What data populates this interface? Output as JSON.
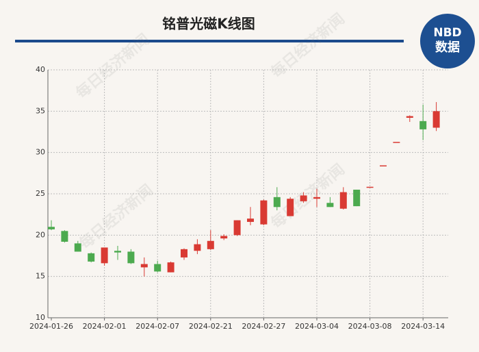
{
  "chart_data": {
    "type": "candlestick",
    "title": "铭普光磁K线图",
    "categories": [
      "2024-01-26",
      null,
      null,
      null,
      "2024-02-01",
      null,
      null,
      null,
      "2024-02-07",
      null,
      null,
      null,
      "2024-02-21",
      null,
      null,
      null,
      "2024-02-27",
      null,
      null,
      null,
      "2024-03-04",
      null,
      null,
      null,
      "2024-03-08",
      null,
      null,
      null,
      "2024-03-14",
      null
    ],
    "open": [
      21.0,
      20.5,
      19.0,
      17.8,
      16.6,
      18.1,
      18.0,
      16.1,
      16.5,
      15.5,
      17.3,
      18.1,
      18.3,
      19.6,
      20.0,
      21.6,
      21.3,
      24.6,
      22.3,
      24.1,
      24.4,
      23.9,
      23.2,
      25.5,
      25.85,
      28.44,
      31.28,
      34.2,
      33.8,
      33.0
    ],
    "high": [
      21.8,
      20.6,
      19.3,
      17.9,
      18.5,
      18.7,
      18.3,
      17.3,
      16.9,
      16.8,
      18.4,
      19.5,
      20.6,
      20.1,
      21.8,
      23.4,
      24.3,
      25.8,
      24.6,
      25.2,
      25.6,
      24.6,
      25.8,
      25.5,
      25.85,
      28.44,
      31.28,
      34.5,
      35.8,
      36.1
    ],
    "low": [
      20.6,
      19.1,
      18.0,
      16.7,
      16.3,
      17.0,
      16.5,
      15.0,
      15.5,
      15.5,
      17.0,
      17.7,
      18.2,
      19.4,
      19.9,
      21.2,
      21.2,
      23.0,
      22.3,
      23.9,
      23.4,
      23.4,
      23.1,
      23.5,
      25.85,
      28.44,
      31.28,
      33.7,
      31.5,
      32.6
    ],
    "close": [
      20.7,
      19.2,
      18.0,
      16.8,
      18.5,
      17.9,
      16.6,
      16.5,
      15.6,
      16.7,
      18.3,
      18.9,
      19.3,
      19.9,
      21.8,
      22.0,
      24.2,
      23.4,
      24.4,
      24.8,
      24.6,
      23.4,
      25.2,
      23.5,
      25.85,
      28.44,
      31.28,
      34.4,
      32.8,
      35.0
    ],
    "up_color": "#d93a33",
    "down_color": "#4caa4f",
    "ylim": [
      10,
      40
    ],
    "yticks": [
      10,
      15,
      20,
      25,
      30,
      35,
      40
    ],
    "grid": true
  },
  "logo": {
    "brand": "NBD",
    "label": "数据"
  },
  "watermark": "每日经济新闻"
}
